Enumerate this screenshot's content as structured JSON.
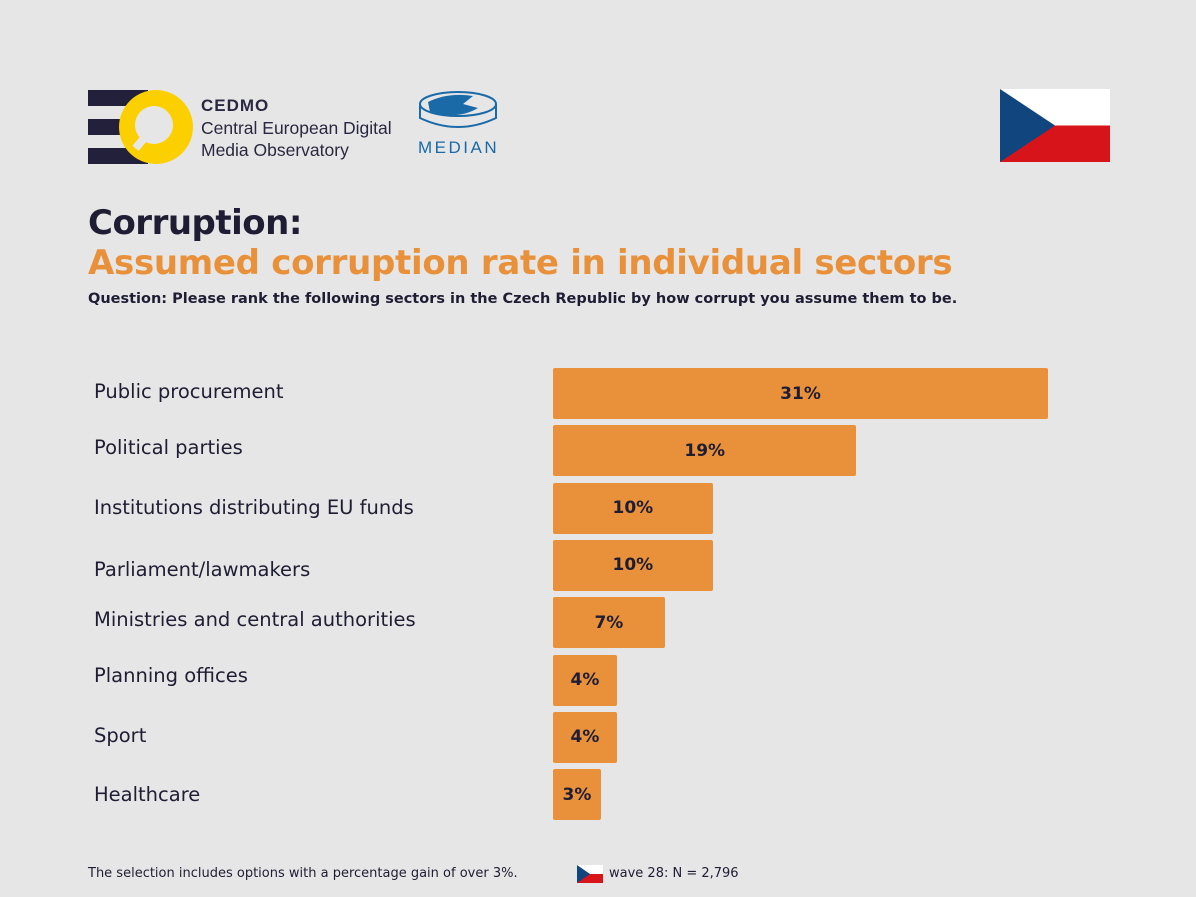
{
  "header": {
    "logo_name": "CEDMO",
    "logo_line1": "Central European Digital",
    "logo_line2": "Media Observatory",
    "partner": "MEDIAN"
  },
  "title": "Corruption:",
  "subtitle": "Assumed corruption rate in individual sectors",
  "question": "Question: Please rank the following sectors in the Czech Republic by how corrupt you assume them to be.",
  "footer": {
    "note": "The selection includes options with a percentage gain of over 3%.",
    "wave": "wave 28: N = 2,796"
  },
  "colors": {
    "bar": "#e8913a",
    "title": "#1f1d33",
    "accent": "#e8913a"
  },
  "chart_data": {
    "type": "bar",
    "orientation": "horizontal",
    "categories": [
      "Public procurement",
      "Political parties",
      "Institutions distributing EU funds",
      "Parliament/lawmakers",
      "Ministries and central authorities",
      "Planning offices",
      "Sport",
      "Healthcare"
    ],
    "values": [
      31,
      19,
      10,
      10,
      7,
      4,
      4,
      3
    ],
    "labels": [
      "31%",
      "19%",
      "10%",
      "10%",
      "7%",
      "4%",
      "4%",
      "3%"
    ],
    "unit": "%"
  }
}
